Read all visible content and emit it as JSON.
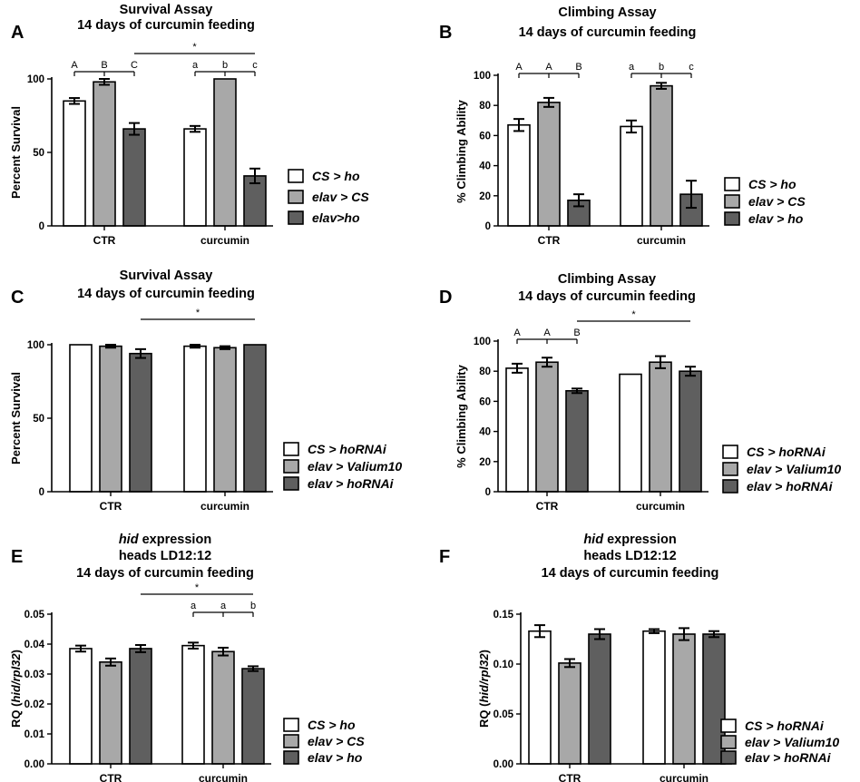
{
  "colors": {
    "white_bar": "#ffffff",
    "light_bar": "#a8a8a8",
    "dark_bar": "#5f5f5f",
    "axis": "#000000"
  },
  "chart_data": [
    {
      "panel": "A",
      "type": "bar",
      "title": [
        "Survival Assay",
        "14 days of curcumin feeding"
      ],
      "ylabel": "Percent Survival",
      "ylim": [
        0,
        100
      ],
      "yticks": [
        0,
        50,
        100
      ],
      "ytick_labels": [
        "0",
        "50",
        "100"
      ],
      "categories": [
        "CTR",
        "curcumin"
      ],
      "series": [
        {
          "name": "CS > ho",
          "values": [
            85,
            66
          ],
          "errors": [
            2,
            2
          ],
          "color": "white"
        },
        {
          "name": "elav > CS",
          "values": [
            98,
            100
          ],
          "errors": [
            2,
            0
          ],
          "color": "light"
        },
        {
          "name": "elav>ho",
          "values": [
            66,
            34
          ],
          "errors": [
            4,
            5
          ],
          "color": "dark"
        }
      ],
      "letters": [
        [
          "A",
          "B",
          "C"
        ],
        [
          "a",
          "b",
          "c"
        ]
      ],
      "star": {
        "label": "*",
        "from": [
          0,
          2
        ],
        "to": [
          1,
          2
        ]
      }
    },
    {
      "panel": "B",
      "type": "bar",
      "title": [
        "Climbing Assay",
        "14 days of curcumin feeding"
      ],
      "ylabel": "% Climbing Ability",
      "ylim": [
        0,
        100
      ],
      "yticks": [
        0,
        20,
        40,
        60,
        80,
        100
      ],
      "ytick_labels": [
        "0",
        "20",
        "40",
        "60",
        "80",
        "100"
      ],
      "categories": [
        "CTR",
        "curcumin"
      ],
      "series": [
        {
          "name": "CS > ho",
          "values": [
            67,
            66
          ],
          "errors": [
            4,
            4
          ],
          "color": "white"
        },
        {
          "name": "elav > CS",
          "values": [
            82,
            93
          ],
          "errors": [
            3,
            2
          ],
          "color": "light"
        },
        {
          "name": "elav > ho",
          "values": [
            17,
            21
          ],
          "errors": [
            4,
            9
          ],
          "color": "dark"
        }
      ],
      "letters": [
        [
          "A",
          "A",
          "B"
        ],
        [
          "a",
          "b",
          "c"
        ]
      ],
      "star": null
    },
    {
      "panel": "C",
      "type": "bar",
      "title": [
        "Survival Assay",
        "14 days of curcumin feeding"
      ],
      "ylabel": "Percent Survival",
      "ylim": [
        0,
        100
      ],
      "yticks": [
        0,
        50,
        100
      ],
      "ytick_labels": [
        "0",
        "50",
        "100"
      ],
      "categories": [
        "CTR",
        "curcumin"
      ],
      "series": [
        {
          "name": "CS > hoRNAi",
          "values": [
            100,
            99
          ],
          "errors": [
            0,
            1
          ],
          "color": "white"
        },
        {
          "name": "elav > Valium10",
          "values": [
            99,
            98
          ],
          "errors": [
            1,
            1
          ],
          "color": "light"
        },
        {
          "name": "elav > hoRNAi",
          "values": [
            94,
            100
          ],
          "errors": [
            3,
            0
          ],
          "color": "dark"
        }
      ],
      "letters": null,
      "star": {
        "label": "*",
        "from": [
          0,
          2
        ],
        "to": [
          1,
          2
        ]
      }
    },
    {
      "panel": "D",
      "type": "bar",
      "title": [
        "Climbing Assay",
        "14 days of curcumin feeding"
      ],
      "ylabel": "% Climbing Ability",
      "ylim": [
        0,
        100
      ],
      "yticks": [
        0,
        20,
        40,
        60,
        80,
        100
      ],
      "ytick_labels": [
        "0",
        "20",
        "40",
        "60",
        "80",
        "100"
      ],
      "categories": [
        "CTR",
        "curcumin"
      ],
      "series": [
        {
          "name": "CS > hoRNAi",
          "values": [
            82,
            78
          ],
          "errors": [
            3,
            0
          ],
          "color": "white"
        },
        {
          "name": "elav > Valium10",
          "values": [
            86,
            86
          ],
          "errors": [
            3,
            4
          ],
          "color": "light"
        },
        {
          "name": "elav > hoRNAi",
          "values": [
            67,
            80
          ],
          "errors": [
            1.5,
            3
          ],
          "color": "dark"
        }
      ],
      "letters": [
        [
          "A",
          "A",
          "B"
        ],
        null
      ],
      "star": {
        "label": "*",
        "from": [
          0,
          2
        ],
        "to": [
          1,
          2
        ]
      }
    },
    {
      "panel": "E",
      "type": "bar",
      "title_italic": "hid",
      "title": [
        "expression",
        "heads LD12:12",
        "14 days of curcumin feeding"
      ],
      "ylabel": "RQ (hid/rpl32)",
      "ylim": [
        0,
        0.05
      ],
      "yticks": [
        0,
        0.01,
        0.02,
        0.03,
        0.04,
        0.05
      ],
      "ytick_labels": [
        "0.00",
        "0.01",
        "0.02",
        "0.03",
        "0.04",
        "0.05"
      ],
      "categories": [
        "CTR",
        "curcumin"
      ],
      "series": [
        {
          "name": "CS > ho",
          "values": [
            0.0385,
            0.0395
          ],
          "errors": [
            0.001,
            0.001
          ],
          "color": "white"
        },
        {
          "name": "elav > CS",
          "values": [
            0.034,
            0.0375
          ],
          "errors": [
            0.0012,
            0.0013
          ],
          "color": "light"
        },
        {
          "name": "elav > ho",
          "values": [
            0.0385,
            0.0318
          ],
          "errors": [
            0.0012,
            0.0008
          ],
          "color": "dark"
        }
      ],
      "letters": [
        null,
        [
          "a",
          "a",
          "b"
        ]
      ],
      "star": {
        "label": "*",
        "from": [
          0,
          2
        ],
        "to": [
          1,
          2
        ]
      }
    },
    {
      "panel": "F",
      "type": "bar",
      "title_italic": "hid",
      "title": [
        "expression",
        "heads LD12:12",
        "14 days of curcumin feeding"
      ],
      "ylabel": "RQ (hid/rpl32)",
      "ylim": [
        0,
        0.15
      ],
      "yticks": [
        0,
        0.05,
        0.1,
        0.15
      ],
      "ytick_labels": [
        "0.00",
        "0.05",
        "0.10",
        "0.15"
      ],
      "categories": [
        "CTR",
        "curcumin"
      ],
      "series": [
        {
          "name": "CS > hoRNAi",
          "values": [
            0.133,
            0.133
          ],
          "errors": [
            0.006,
            0.002
          ],
          "color": "white"
        },
        {
          "name": "elav > Valium10",
          "values": [
            0.101,
            0.13
          ],
          "errors": [
            0.004,
            0.006
          ],
          "color": "light"
        },
        {
          "name": "elav > hoRNAi",
          "values": [
            0.13,
            0.13
          ],
          "errors": [
            0.005,
            0.003
          ],
          "color": "dark"
        }
      ],
      "letters": null,
      "star": null
    }
  ]
}
